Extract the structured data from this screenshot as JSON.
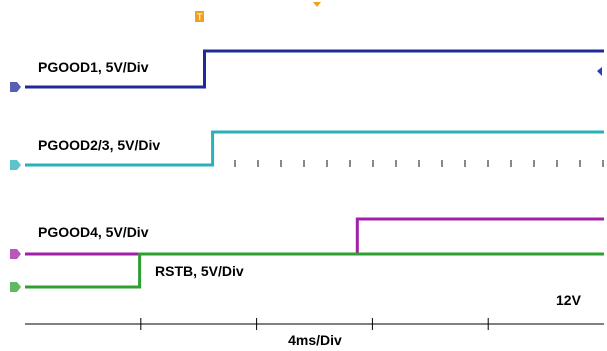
{
  "chart_data": {
    "type": "line",
    "xlabel": "4ms/Div",
    "ylabel": "",
    "title": "",
    "grid": false,
    "x_divisions": 5,
    "annotations": [
      "12V"
    ],
    "series": [
      {
        "name": "PGOOD1, 5V/Div",
        "color": "#1f2a9a",
        "x": [
          0,
          1.55,
          1.55,
          5
        ],
        "y": [
          0,
          0,
          1,
          1
        ]
      },
      {
        "name": "PGOOD2/3, 5V/Div",
        "color": "#2ab0b8",
        "x": [
          0,
          1.62,
          1.62,
          5
        ],
        "y": [
          0,
          0,
          1,
          1
        ]
      },
      {
        "name": "PGOOD4, 5V/Div",
        "color": "#a020a8",
        "x": [
          0,
          2.87,
          2.87,
          5
        ],
        "y": [
          0,
          0,
          1,
          1
        ]
      },
      {
        "name": "RSTB, 5V/Div",
        "color": "#2ea030",
        "x": [
          0,
          0.99,
          0.99,
          5
        ],
        "y": [
          0,
          0,
          1,
          1
        ]
      }
    ]
  }
}
